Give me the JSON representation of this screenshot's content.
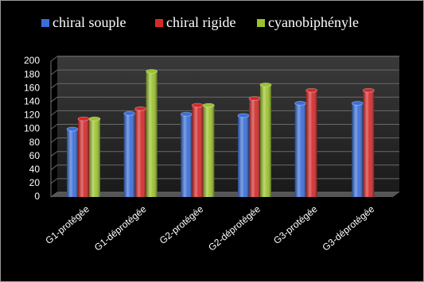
{
  "chart_data": {
    "type": "bar",
    "categories": [
      "G1-protégée",
      "G1-déprotégée",
      "G2-protégée",
      "G2-déprotégée",
      "G3-protégée",
      "G3-déprotégée"
    ],
    "series": [
      {
        "name": "chiral souple",
        "color": "#3a6fd8",
        "values": [
          100,
          123,
          122,
          120,
          138,
          138
        ]
      },
      {
        "name": "chiral rigide",
        "color": "#d42a2a",
        "values": [
          115,
          130,
          135,
          145,
          157,
          157
        ]
      },
      {
        "name": "cyanobiphényle",
        "color": "#9bc22d",
        "values": [
          115,
          185,
          135,
          165,
          null,
          null
        ]
      }
    ],
    "ylim": [
      0,
      200
    ],
    "yticks": [
      0,
      20,
      40,
      60,
      80,
      100,
      120,
      140,
      160,
      180,
      200
    ],
    "grid": true
  }
}
